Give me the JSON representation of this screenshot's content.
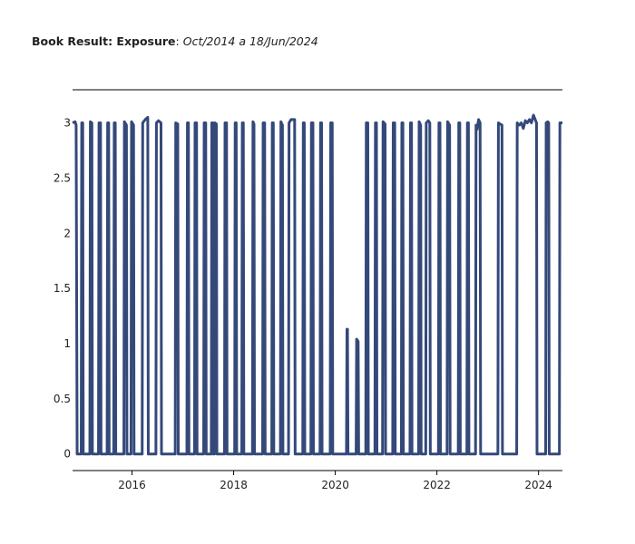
{
  "chart_data": {
    "type": "line",
    "title_bold": "Book Result: Exposure",
    "title_sep": ": ",
    "title_italic": "Oct/2014 a 18/Jun/2024",
    "xlabel": "",
    "ylabel": "",
    "xlim": [
      2014.83,
      2024.47
    ],
    "ylim": [
      -0.15,
      3.3
    ],
    "y_ticks": [
      0,
      0.5,
      1,
      1.5,
      2,
      2.5,
      3
    ],
    "y_tick_labels": [
      "0",
      "0.5",
      "1",
      "1.5",
      "2",
      "2.5",
      "3"
    ],
    "x_ticks": [
      2016,
      2018,
      2020,
      2022,
      2024
    ],
    "x_tick_labels": [
      "2016",
      "2018",
      "2020",
      "2022",
      "2024"
    ],
    "grid": false,
    "legend": "none",
    "series": [
      {
        "color": "#34497a",
        "points": [
          [
            2014.83,
            3.0
          ],
          [
            2014.88,
            3.01
          ],
          [
            2014.9,
            2.98
          ],
          [
            2014.92,
            0.0
          ],
          [
            2015.0,
            0.0
          ],
          [
            2015.01,
            3.0
          ],
          [
            2015.03,
            3.0
          ],
          [
            2015.04,
            0.0
          ],
          [
            2015.17,
            0.0
          ],
          [
            2015.18,
            3.01
          ],
          [
            2015.21,
            3.0
          ],
          [
            2015.22,
            0.0
          ],
          [
            2015.34,
            0.0
          ],
          [
            2015.35,
            3.0
          ],
          [
            2015.38,
            3.0
          ],
          [
            2015.39,
            0.0
          ],
          [
            2015.51,
            0.0
          ],
          [
            2015.52,
            3.0
          ],
          [
            2015.54,
            3.0
          ],
          [
            2015.55,
            0.0
          ],
          [
            2015.64,
            0.0
          ],
          [
            2015.65,
            3.0
          ],
          [
            2015.67,
            3.0
          ],
          [
            2015.68,
            0.0
          ],
          [
            2015.84,
            0.0
          ],
          [
            2015.85,
            3.01
          ],
          [
            2015.89,
            2.98
          ],
          [
            2015.9,
            0.0
          ],
          [
            2015.98,
            0.0
          ],
          [
            2015.99,
            3.01
          ],
          [
            2016.03,
            2.98
          ],
          [
            2016.04,
            0.0
          ],
          [
            2016.2,
            0.0
          ],
          [
            2016.21,
            3.0
          ],
          [
            2016.26,
            3.03
          ],
          [
            2016.31,
            3.05
          ],
          [
            2016.32,
            0.0
          ],
          [
            2016.47,
            0.0
          ],
          [
            2016.48,
            3.0
          ],
          [
            2016.52,
            3.02
          ],
          [
            2016.57,
            3.0
          ],
          [
            2016.58,
            0.0
          ],
          [
            2016.85,
            0.0
          ],
          [
            2016.86,
            3.0
          ],
          [
            2016.9,
            2.99
          ],
          [
            2016.91,
            0.0
          ],
          [
            2017.08,
            0.0
          ],
          [
            2017.09,
            3.0
          ],
          [
            2017.11,
            3.0
          ],
          [
            2017.12,
            0.0
          ],
          [
            2017.23,
            0.0
          ],
          [
            2017.24,
            3.0
          ],
          [
            2017.27,
            3.0
          ],
          [
            2017.28,
            0.0
          ],
          [
            2017.41,
            0.0
          ],
          [
            2017.42,
            3.0
          ],
          [
            2017.45,
            3.0
          ],
          [
            2017.46,
            0.0
          ],
          [
            2017.56,
            0.0
          ],
          [
            2017.57,
            3.0
          ],
          [
            2017.59,
            3.0
          ],
          [
            2017.6,
            0.0
          ],
          [
            2017.62,
            0.0
          ],
          [
            2017.63,
            3.0
          ],
          [
            2017.66,
            2.99
          ],
          [
            2017.67,
            0.0
          ],
          [
            2017.82,
            0.0
          ],
          [
            2017.83,
            3.0
          ],
          [
            2017.86,
            3.0
          ],
          [
            2017.87,
            0.0
          ],
          [
            2018.02,
            0.0
          ],
          [
            2018.03,
            3.0
          ],
          [
            2018.05,
            3.0
          ],
          [
            2018.06,
            0.0
          ],
          [
            2018.16,
            0.0
          ],
          [
            2018.17,
            3.0
          ],
          [
            2018.19,
            3.0
          ],
          [
            2018.2,
            0.0
          ],
          [
            2018.37,
            0.0
          ],
          [
            2018.38,
            3.01
          ],
          [
            2018.4,
            2.99
          ],
          [
            2018.41,
            0.0
          ],
          [
            2018.57,
            0.0
          ],
          [
            2018.58,
            3.0
          ],
          [
            2018.61,
            3.0
          ],
          [
            2018.62,
            0.0
          ],
          [
            2018.75,
            0.0
          ],
          [
            2018.76,
            3.0
          ],
          [
            2018.78,
            3.0
          ],
          [
            2018.79,
            0.0
          ],
          [
            2018.92,
            0.0
          ],
          [
            2018.93,
            3.01
          ],
          [
            2018.96,
            2.98
          ],
          [
            2018.97,
            0.0
          ],
          [
            2019.08,
            0.0
          ],
          [
            2019.09,
            3.0
          ],
          [
            2019.13,
            3.03
          ],
          [
            2019.2,
            3.03
          ],
          [
            2019.21,
            0.0
          ],
          [
            2019.36,
            0.0
          ],
          [
            2019.37,
            3.0
          ],
          [
            2019.39,
            3.0
          ],
          [
            2019.4,
            0.0
          ],
          [
            2019.52,
            0.0
          ],
          [
            2019.53,
            3.0
          ],
          [
            2019.56,
            3.0
          ],
          [
            2019.57,
            0.0
          ],
          [
            2019.7,
            0.0
          ],
          [
            2019.71,
            3.0
          ],
          [
            2019.73,
            3.0
          ],
          [
            2019.74,
            0.0
          ],
          [
            2019.9,
            0.0
          ],
          [
            2019.91,
            3.0
          ],
          [
            2019.94,
            3.0
          ],
          [
            2019.95,
            0.0
          ],
          [
            2020.22,
            0.0
          ],
          [
            2020.23,
            1.13
          ],
          [
            2020.24,
            1.13
          ],
          [
            2020.25,
            0.0
          ],
          [
            2020.41,
            0.0
          ],
          [
            2020.42,
            1.04
          ],
          [
            2020.45,
            1.02
          ],
          [
            2020.46,
            0.0
          ],
          [
            2020.6,
            0.0
          ],
          [
            2020.61,
            3.0
          ],
          [
            2020.64,
            3.0
          ],
          [
            2020.65,
            0.0
          ],
          [
            2020.78,
            0.0
          ],
          [
            2020.79,
            3.0
          ],
          [
            2020.81,
            3.0
          ],
          [
            2020.82,
            0.0
          ],
          [
            2020.93,
            0.0
          ],
          [
            2020.94,
            3.01
          ],
          [
            2020.98,
            2.99
          ],
          [
            2020.99,
            0.0
          ],
          [
            2021.13,
            0.0
          ],
          [
            2021.14,
            3.0
          ],
          [
            2021.17,
            3.0
          ],
          [
            2021.18,
            0.0
          ],
          [
            2021.3,
            0.0
          ],
          [
            2021.31,
            3.0
          ],
          [
            2021.33,
            3.0
          ],
          [
            2021.34,
            0.0
          ],
          [
            2021.47,
            0.0
          ],
          [
            2021.48,
            3.0
          ],
          [
            2021.5,
            3.0
          ],
          [
            2021.51,
            0.0
          ],
          [
            2021.64,
            0.0
          ],
          [
            2021.65,
            3.01
          ],
          [
            2021.68,
            2.98
          ],
          [
            2021.69,
            0.0
          ],
          [
            2021.78,
            0.0
          ],
          [
            2021.79,
            3.0
          ],
          [
            2021.83,
            3.02
          ],
          [
            2021.86,
            3.0
          ],
          [
            2021.87,
            0.0
          ],
          [
            2022.03,
            0.0
          ],
          [
            2022.04,
            3.0
          ],
          [
            2022.06,
            3.0
          ],
          [
            2022.07,
            0.0
          ],
          [
            2022.2,
            0.0
          ],
          [
            2022.21,
            3.01
          ],
          [
            2022.25,
            2.98
          ],
          [
            2022.26,
            0.0
          ],
          [
            2022.42,
            0.0
          ],
          [
            2022.43,
            3.0
          ],
          [
            2022.45,
            3.0
          ],
          [
            2022.46,
            0.0
          ],
          [
            2022.59,
            0.0
          ],
          [
            2022.6,
            3.0
          ],
          [
            2022.62,
            3.0
          ],
          [
            2022.63,
            0.0
          ],
          [
            2022.76,
            0.0
          ],
          [
            2022.77,
            2.98
          ],
          [
            2022.79,
            2.94
          ],
          [
            2022.82,
            3.03
          ],
          [
            2022.85,
            3.0
          ],
          [
            2022.86,
            0.0
          ],
          [
            2023.2,
            0.0
          ],
          [
            2023.21,
            3.0
          ],
          [
            2023.24,
            2.99
          ],
          [
            2023.28,
            2.98
          ],
          [
            2023.29,
            0.0
          ],
          [
            2023.57,
            0.0
          ],
          [
            2023.58,
            3.0
          ],
          [
            2023.62,
            2.98
          ],
          [
            2023.66,
            3.0
          ],
          [
            2023.7,
            2.95
          ],
          [
            2023.74,
            3.02
          ],
          [
            2023.78,
            3.0
          ],
          [
            2023.82,
            3.03
          ],
          [
            2023.86,
            3.0
          ],
          [
            2023.9,
            3.07
          ],
          [
            2023.96,
            3.0
          ],
          [
            2023.97,
            0.0
          ],
          [
            2024.14,
            0.0
          ],
          [
            2024.15,
            3.0
          ],
          [
            2024.18,
            3.01
          ],
          [
            2024.2,
            3.0
          ],
          [
            2024.21,
            0.0
          ],
          [
            2024.41,
            0.0
          ],
          [
            2024.42,
            3.0
          ],
          [
            2024.47,
            3.0
          ]
        ]
      }
    ]
  }
}
